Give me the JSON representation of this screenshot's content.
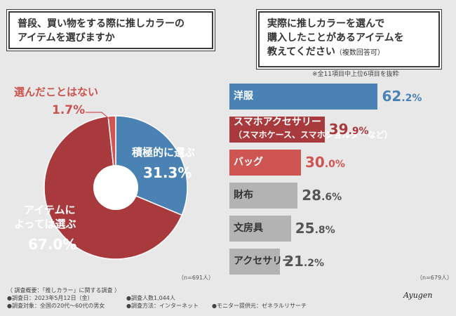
{
  "left_question": {
    "line1": "普段、買い物をする際に推しカラーの",
    "line2": "アイテムを選びますか"
  },
  "right_question": {
    "line1": "実際に推しカラーを選んで",
    "line2": "購入したことがあるアイテムを",
    "line3": "教えてください",
    "line3_note": "（複数回答可）"
  },
  "note": "※全11項目中上位6項目を抜粋",
  "left_n": "（n=691人）",
  "right_n": "（n=679人）",
  "colors": {
    "active": "#4a82b4",
    "item": "#a83a3e",
    "never": "#cf5552",
    "gray": "#b3b3b3"
  },
  "pie_annotations": {
    "never_label": "選んだことはない",
    "never_value": "1.7%",
    "active_label": "積極的に選ぶ",
    "active_value": "31.3%",
    "item_label1": "アイテムに",
    "item_label2": "よっては選ぶ",
    "item_value": "67.0%"
  },
  "chart_data": [
    {
      "type": "pie",
      "title": "普段、買い物をする際に推しカラーのアイテムを選びますか",
      "slices": [
        {
          "label": "積極的に選ぶ",
          "value": 31.3
        },
        {
          "label": "アイテムによっては選ぶ",
          "value": 67.0
        },
        {
          "label": "選んだことはない",
          "value": 1.7
        }
      ],
      "n": "n=691人"
    },
    {
      "type": "bar",
      "orientation": "horizontal",
      "title": "実際に推しカラーを選んで購入したことがあるアイテムを教えてください（複数回答可）",
      "categories": [
        "洋服",
        "スマホアクセサリー（スマホケース、スマホショルダーなど）",
        "バッグ",
        "財布",
        "文房具",
        "アクセサリー"
      ],
      "values": [
        62.2,
        39.9,
        30.0,
        28.6,
        25.8,
        21.2
      ],
      "n": "n=679人",
      "xlim": [
        0,
        100
      ]
    }
  ],
  "bars": [
    {
      "label": "洋服",
      "sub": "",
      "int": "62",
      "dec": ".2%",
      "style": "active"
    },
    {
      "label": "スマホアクセサリー",
      "sub": "（スマホケース、スマホショルダーなど）",
      "int": "39",
      "dec": ".9%",
      "style": "item"
    },
    {
      "label": "バッグ",
      "sub": "",
      "int": "30",
      "dec": ".0%",
      "style": "never"
    },
    {
      "label": "財布",
      "sub": "",
      "int": "28",
      "dec": ".6%",
      "style": "gray"
    },
    {
      "label": "文房具",
      "sub": "",
      "int": "25",
      "dec": ".8%",
      "style": "gray"
    },
    {
      "label": "アクセサリー",
      "sub": "",
      "int": "21",
      "dec": ".2%",
      "style": "gray"
    }
  ],
  "footer": {
    "survey": "（ 調査概要：「推しカラー」に関する調査 ）",
    "date": "●調査日：2023年5月12日（金）",
    "count": "●調査人数1,044人",
    "target": "●調査対象：全国の20代〜60代の男女",
    "method": "●調査方法：インターネット",
    "monitor": "●モニター提供元：ゼネラルリサーチ"
  },
  "signature": "Ayugen"
}
